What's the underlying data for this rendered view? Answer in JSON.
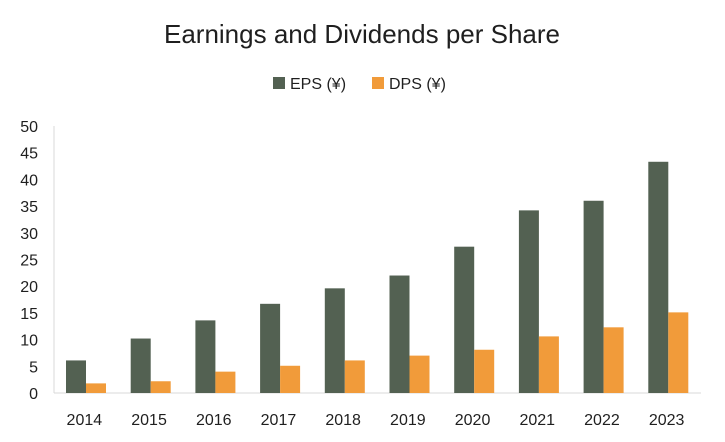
{
  "chart_data": {
    "type": "bar",
    "title": "Earnings and Dividends per Share",
    "xlabel": "",
    "ylabel": "",
    "ylim": [
      0,
      50
    ],
    "yticks": [
      0,
      5,
      10,
      15,
      20,
      25,
      30,
      35,
      40,
      45,
      50
    ],
    "grid": false,
    "legend_position": "top-center",
    "categories": [
      "2014",
      "2015",
      "2016",
      "2017",
      "2018",
      "2019",
      "2020",
      "2021",
      "2022",
      "2023"
    ],
    "series": [
      {
        "name": "EPS (¥)",
        "color": "#536152",
        "values": [
          6.1,
          10.2,
          13.6,
          16.7,
          19.6,
          22.0,
          27.4,
          34.2,
          36.0,
          43.3
        ]
      },
      {
        "name": "DPS (¥)",
        "color": "#F19B3A",
        "values": [
          1.8,
          2.2,
          4.0,
          5.1,
          6.1,
          7.0,
          8.1,
          10.6,
          12.3,
          15.1
        ]
      }
    ]
  }
}
